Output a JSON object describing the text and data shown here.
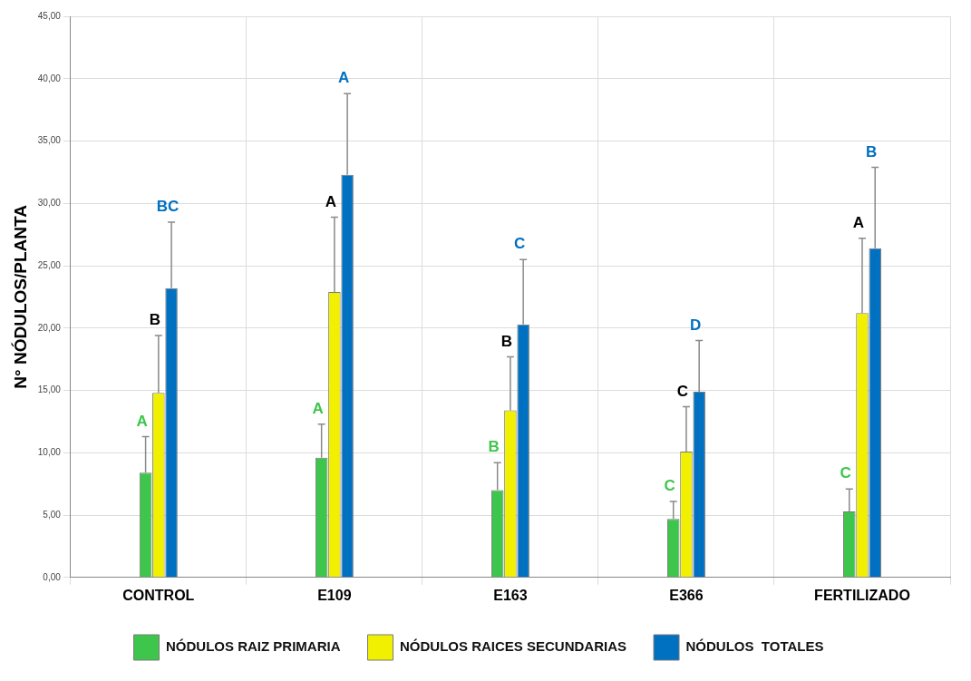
{
  "chart_data": {
    "type": "bar",
    "ylabel": "N° NÓDULOS/PLANTA",
    "categories": [
      "CONTROL",
      "E109",
      "E163",
      "E366",
      "FERTILIZADO"
    ],
    "series": [
      {
        "name": "NÓDULOS RAIZ PRIMARIA",
        "color": "#3ec64c",
        "values": [
          8.4,
          9.6,
          7.0,
          4.7,
          5.3
        ],
        "errors": [
          [
            8.4,
            11.3
          ],
          [
            9.6,
            12.3
          ],
          [
            7.0,
            9.2
          ],
          [
            4.7,
            6.1
          ],
          [
            5.3,
            7.1
          ]
        ]
      },
      {
        "name": "NÓDULOS RAICES SECUNDARIAS",
        "color": "#f0f000",
        "values": [
          14.8,
          22.9,
          13.4,
          10.1,
          21.2
        ],
        "errors": [
          [
            14.8,
            19.4
          ],
          [
            22.9,
            28.9
          ],
          [
            13.4,
            17.7
          ],
          [
            10.1,
            13.7
          ],
          [
            21.2,
            27.2
          ]
        ]
      },
      {
        "name": "NÓDULOS  TOTALES",
        "color": "#0070c0",
        "values": [
          23.2,
          32.3,
          20.3,
          14.9,
          26.4
        ],
        "errors": [
          [
            23.2,
            28.5
          ],
          [
            32.3,
            38.8
          ],
          [
            20.3,
            25.5
          ],
          [
            14.9,
            19.0
          ],
          [
            26.4,
            32.9
          ]
        ]
      }
    ],
    "annotations": [
      "A",
      "B",
      "BC",
      "A",
      "A",
      "A",
      "B",
      "B",
      "C",
      "C",
      "C",
      "D",
      "C",
      "A",
      "B"
    ],
    "ylim": [
      0,
      45
    ],
    "yticks": [
      {
        "value": 0,
        "label": "0,00"
      },
      {
        "value": 5,
        "label": "5,00"
      },
      {
        "value": 10,
        "label": "10,00"
      },
      {
        "value": 15,
        "label": "15,00"
      },
      {
        "value": 20,
        "label": "20,00"
      },
      {
        "value": 25,
        "label": "25,00"
      },
      {
        "value": 30,
        "label": "30,00"
      },
      {
        "value": 35,
        "label": "35,00"
      },
      {
        "value": 40,
        "label": "40,00"
      },
      {
        "value": 45,
        "label": "45,00"
      }
    ],
    "grid": true,
    "legend": "bottom"
  }
}
